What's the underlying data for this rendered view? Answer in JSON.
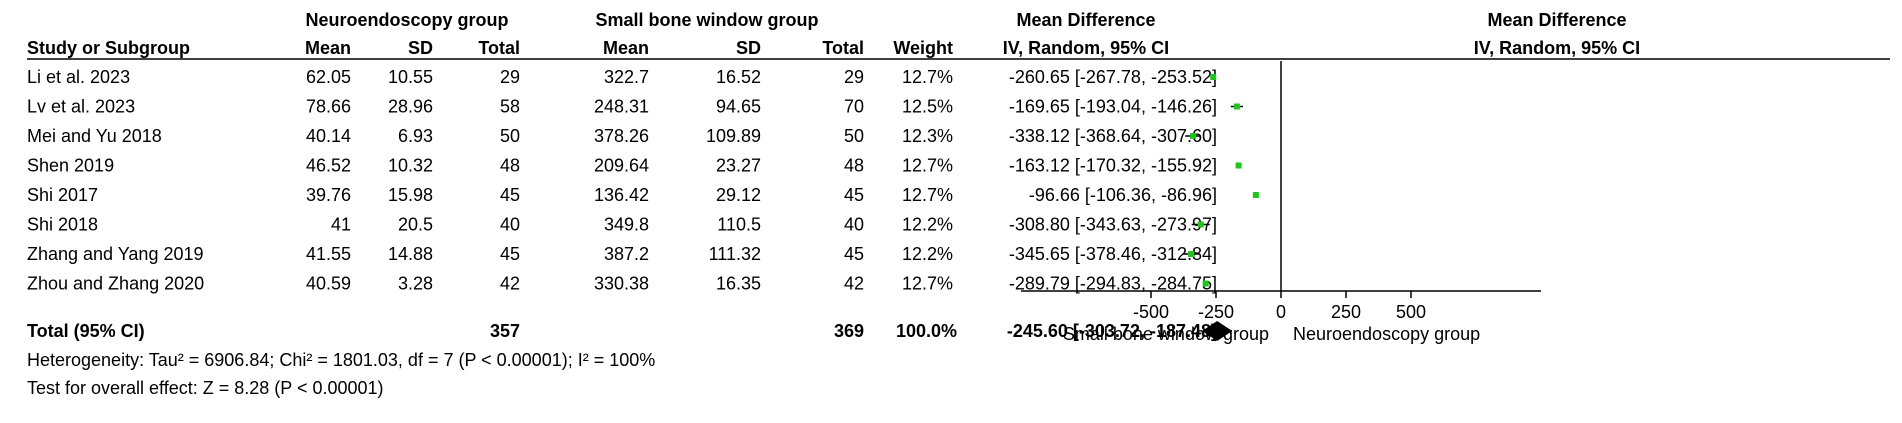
{
  "headers": {
    "group1": "Neuroendoscopy group",
    "group2": "Small bone window group",
    "md_table": "Mean Difference",
    "md_plot": "Mean Difference",
    "study": "Study or Subgroup",
    "mean1": "Mean",
    "sd1": "SD",
    "total1": "Total",
    "mean2": "Mean",
    "sd2": "SD",
    "total2": "Total",
    "weight": "Weight",
    "method_table": "IV, Random, 95% CI",
    "method_plot": "IV, Random, 95% CI"
  },
  "studies": [
    {
      "name": "Li et al. 2023",
      "mean1": "62.05",
      "sd1": "10.55",
      "total1": "29",
      "mean2": "322.7",
      "sd2": "16.52",
      "total2": "29",
      "weight": "12.7%",
      "ci_text": "-260.65 [-267.78, -253.52]"
    },
    {
      "name": "Lv et al. 2023",
      "mean1": "78.66",
      "sd1": "28.96",
      "total1": "58",
      "mean2": "248.31",
      "sd2": "94.65",
      "total2": "70",
      "weight": "12.5%",
      "ci_text": "-169.65 [-193.04, -146.26]"
    },
    {
      "name": "Mei and Yu 2018",
      "mean1": "40.14",
      "sd1": "6.93",
      "total1": "50",
      "mean2": "378.26",
      "sd2": "109.89",
      "total2": "50",
      "weight": "12.3%",
      "ci_text": "-338.12 [-368.64, -307.60]"
    },
    {
      "name": "Shen 2019",
      "mean1": "46.52",
      "sd1": "10.32",
      "total1": "48",
      "mean2": "209.64",
      "sd2": "23.27",
      "total2": "48",
      "weight": "12.7%",
      "ci_text": "-163.12 [-170.32, -155.92]"
    },
    {
      "name": "Shi 2017",
      "mean1": "39.76",
      "sd1": "15.98",
      "total1": "45",
      "mean2": "136.42",
      "sd2": "29.12",
      "total2": "45",
      "weight": "12.7%",
      "ci_text": "-96.66 [-106.36, -86.96]"
    },
    {
      "name": "Shi  2018",
      "mean1": "41",
      "sd1": "20.5",
      "total1": "40",
      "mean2": "349.8",
      "sd2": "110.5",
      "total2": "40",
      "weight": "12.2%",
      "ci_text": "-308.80 [-343.63, -273.97]"
    },
    {
      "name": "Zhang and Yang 2019",
      "mean1": "41.55",
      "sd1": "14.88",
      "total1": "45",
      "mean2": "387.2",
      "sd2": "111.32",
      "total2": "45",
      "weight": "12.2%",
      "ci_text": "-345.65 [-378.46, -312.84]"
    },
    {
      "name": "Zhou and Zhang 2020",
      "mean1": "40.59",
      "sd1": "3.28",
      "total1": "42",
      "mean2": "330.38",
      "sd2": "16.35",
      "total2": "42",
      "weight": "12.7%",
      "ci_text": "-289.79 [-294.83, -284.75]"
    }
  ],
  "total": {
    "label": "Total (95% CI)",
    "total1": "357",
    "total2": "369",
    "weight": "100.0%",
    "ci_text": "-245.60 [-303.72, -187.48]"
  },
  "heterogeneity": "Heterogeneity: Tau² = 6906.84; Chi² = 1801.03, df = 7 (P < 0.00001); I² = 100%",
  "overall_effect": "Test for overall effect: Z = 8.28 (P < 0.00001)",
  "colors": {
    "marker": "#1fc41f",
    "diamond": "#000000",
    "line": "#000000"
  },
  "chart_data": {
    "type": "forest",
    "studies": [
      {
        "name": "Li et al. 2023",
        "estimate": -260.65,
        "ci_low": -267.78,
        "ci_high": -253.52,
        "weight": 12.7
      },
      {
        "name": "Lv et al. 2023",
        "estimate": -169.65,
        "ci_low": -193.04,
        "ci_high": -146.26,
        "weight": 12.5
      },
      {
        "name": "Mei and Yu 2018",
        "estimate": -338.12,
        "ci_low": -368.64,
        "ci_high": -307.6,
        "weight": 12.3
      },
      {
        "name": "Shen 2019",
        "estimate": -163.12,
        "ci_low": -170.32,
        "ci_high": -155.92,
        "weight": 12.7
      },
      {
        "name": "Shi 2017",
        "estimate": -96.66,
        "ci_low": -106.36,
        "ci_high": -86.96,
        "weight": 12.7
      },
      {
        "name": "Shi  2018",
        "estimate": -308.8,
        "ci_low": -343.63,
        "ci_high": -273.97,
        "weight": 12.2
      },
      {
        "name": "Zhang and Yang 2019",
        "estimate": -345.65,
        "ci_low": -378.46,
        "ci_high": -312.84,
        "weight": 12.2
      },
      {
        "name": "Zhou and Zhang 2020",
        "estimate": -289.79,
        "ci_low": -294.83,
        "ci_high": -284.75,
        "weight": 12.7
      }
    ],
    "pooled": {
      "estimate": -245.6,
      "ci_low": -303.72,
      "ci_high": -187.48
    },
    "xlim": [
      -1000,
      1000
    ],
    "ticks": [
      -500,
      -250,
      0,
      250,
      500
    ],
    "tick_labels": [
      "-500",
      "-250",
      "0",
      "250",
      "500"
    ],
    "xlabel_left": "Small bone window group",
    "xlabel_right": "Neuroendoscopy group",
    "null_value": 0
  }
}
